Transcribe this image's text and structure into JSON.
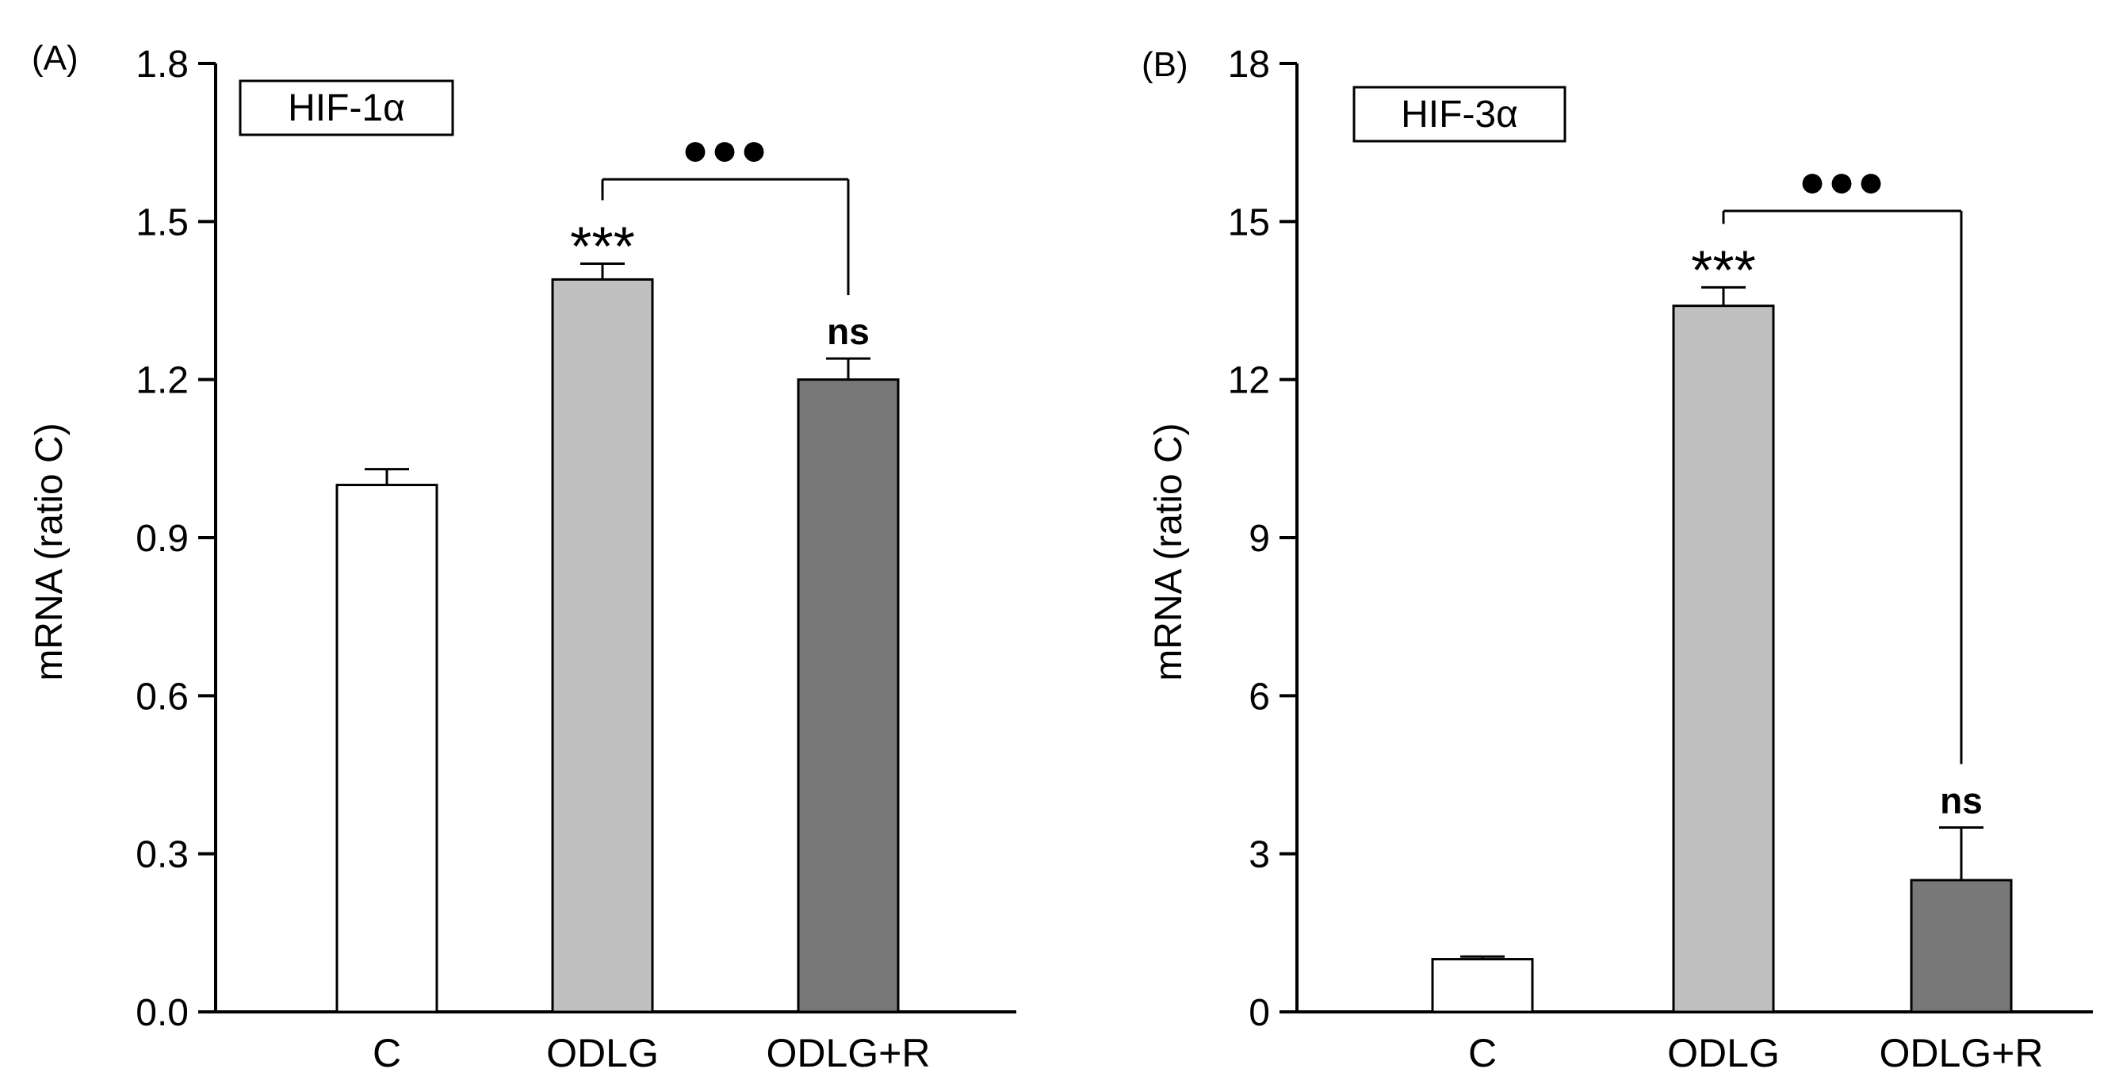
{
  "chart_data": [
    {
      "type": "bar",
      "panel_label": "(A)",
      "gene": "HIF-1α",
      "ylabel": "mRNA (ratio C)",
      "xlabel": "",
      "ylim": [
        0,
        1.8
      ],
      "yticks": [
        "0.0",
        "0.3",
        "0.6",
        "0.9",
        "1.2",
        "1.5",
        "1.8"
      ],
      "categories": [
        "C",
        "ODLG",
        "ODLG+R"
      ],
      "values": [
        1.0,
        1.39,
        1.2
      ],
      "errors": [
        0.03,
        0.03,
        0.04
      ],
      "bar_colors": [
        "#ffffff",
        "#c0c0c0",
        "#787878"
      ],
      "significance": [
        "",
        "***",
        "ns"
      ],
      "bracket": {
        "from": 1,
        "to": 2,
        "label": "●●●",
        "y": 1.58
      }
    },
    {
      "type": "bar",
      "panel_label": "(B)",
      "gene": "HIF-3α",
      "ylabel": "mRNA (ratio C)",
      "xlabel": "",
      "ylim": [
        0,
        18
      ],
      "yticks": [
        "0",
        "3",
        "6",
        "9",
        "12",
        "15",
        "18"
      ],
      "categories": [
        "C",
        "ODLG",
        "ODLG+R"
      ],
      "values": [
        1.0,
        13.4,
        2.5
      ],
      "errors": [
        0.05,
        0.35,
        1.0
      ],
      "bar_colors": [
        "#ffffff",
        "#c0c0c0",
        "#787878"
      ],
      "significance": [
        "",
        "***",
        "ns"
      ],
      "bracket": {
        "from": 1,
        "to": 2,
        "label": "●●●",
        "y": 15.2
      }
    }
  ]
}
